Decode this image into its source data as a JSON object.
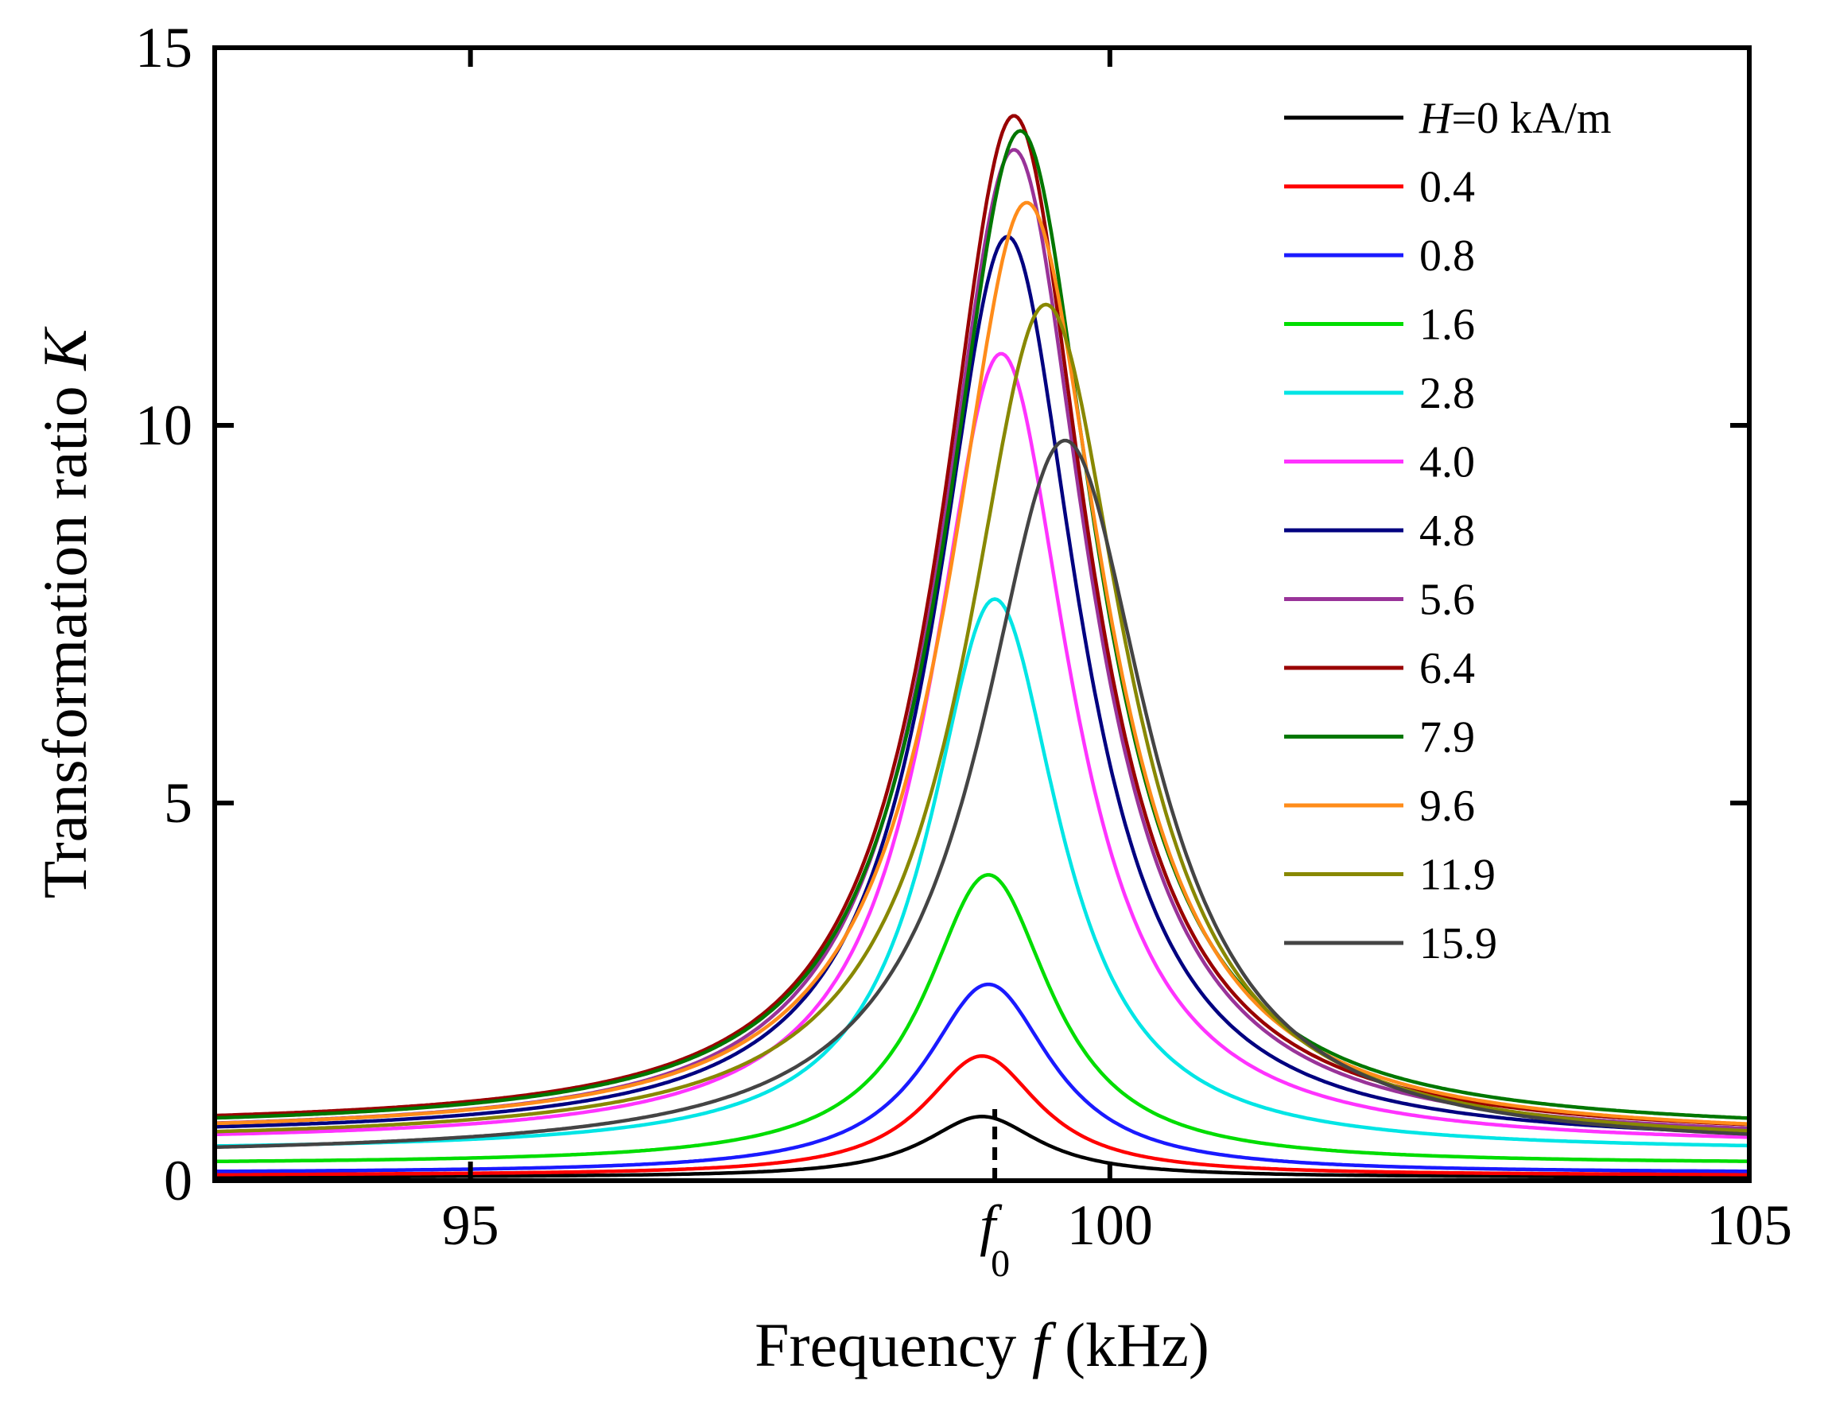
{
  "chart_data": {
    "type": "line",
    "title": "",
    "xlabel": "Frequency ",
    "xlabel_italic": "f",
    "xlabel_unit": " (kHz)",
    "ylabel": "Transformation ratio ",
    "ylabel_italic": "K",
    "xlim": [
      93,
      105
    ],
    "ylim": [
      0,
      15
    ],
    "x_ticks": [
      95,
      100,
      105
    ],
    "x_tick_labels": [
      "95",
      "100",
      "105"
    ],
    "y_ticks": [
      0,
      5,
      10,
      15
    ],
    "y_tick_labels": [
      "0",
      "5",
      "10",
      "15"
    ],
    "marker": {
      "label": "f",
      "subscript": "0",
      "x": 99.1
    },
    "legend_position": "top-right",
    "legend_prefix": "H",
    "series": [
      {
        "name": "0 kA/m",
        "legend": "=0 kA/m",
        "color": "#000000",
        "peak_x": 99.0,
        "peak_y": 0.85,
        "halfwidth": 0.55,
        "base_left": 0.05,
        "base_right": 0.05
      },
      {
        "name": "0.4",
        "legend": "0.4",
        "color": "#ff0000",
        "peak_x": 99.0,
        "peak_y": 1.65,
        "halfwidth": 0.55,
        "base_left": 0.08,
        "base_right": 0.08
      },
      {
        "name": "0.8",
        "legend": "0.8",
        "color": "#1a1aff",
        "peak_x": 99.05,
        "peak_y": 2.6,
        "halfwidth": 0.6,
        "base_left": 0.12,
        "base_right": 0.12
      },
      {
        "name": "1.6",
        "legend": "1.6",
        "color": "#00dd00",
        "peak_x": 99.05,
        "peak_y": 4.05,
        "halfwidth": 0.6,
        "base_left": 0.25,
        "base_right": 0.25
      },
      {
        "name": "2.8",
        "legend": "2.8",
        "color": "#00e5e5",
        "peak_x": 99.1,
        "peak_y": 7.7,
        "halfwidth": 0.62,
        "base_left": 0.45,
        "base_right": 0.45
      },
      {
        "name": "4.0",
        "legend": "4.0",
        "color": "#ff33ff",
        "peak_x": 99.15,
        "peak_y": 10.95,
        "halfwidth": 0.66,
        "base_left": 0.6,
        "base_right": 0.55
      },
      {
        "name": "4.8",
        "legend": "4.8",
        "color": "#000080",
        "peak_x": 99.2,
        "peak_y": 12.5,
        "halfwidth": 0.68,
        "base_left": 0.7,
        "base_right": 0.6
      },
      {
        "name": "5.6",
        "legend": "5.6",
        "color": "#993399",
        "peak_x": 99.25,
        "peak_y": 13.65,
        "halfwidth": 0.7,
        "base_left": 0.75,
        "base_right": 0.65
      },
      {
        "name": "6.4",
        "legend": "6.4",
        "color": "#990000",
        "peak_x": 99.25,
        "peak_y": 14.1,
        "halfwidth": 0.7,
        "base_left": 0.85,
        "base_right": 0.7
      },
      {
        "name": "7.9",
        "legend": "7.9",
        "color": "#007700",
        "peak_x": 99.3,
        "peak_y": 13.9,
        "halfwidth": 0.72,
        "base_left": 0.82,
        "base_right": 0.78
      },
      {
        "name": "9.6",
        "legend": "9.6",
        "color": "#ff8c1a",
        "peak_x": 99.35,
        "peak_y": 12.95,
        "halfwidth": 0.74,
        "base_left": 0.75,
        "base_right": 0.7
      },
      {
        "name": "11.9",
        "legend": "11.9",
        "color": "#888800",
        "peak_x": 99.5,
        "peak_y": 11.6,
        "halfwidth": 0.76,
        "base_left": 0.65,
        "base_right": 0.6
      },
      {
        "name": "15.9",
        "legend": "15.9",
        "color": "#444444",
        "peak_x": 99.65,
        "peak_y": 9.8,
        "halfwidth": 0.8,
        "base_left": 0.45,
        "base_right": 0.55
      }
    ]
  }
}
